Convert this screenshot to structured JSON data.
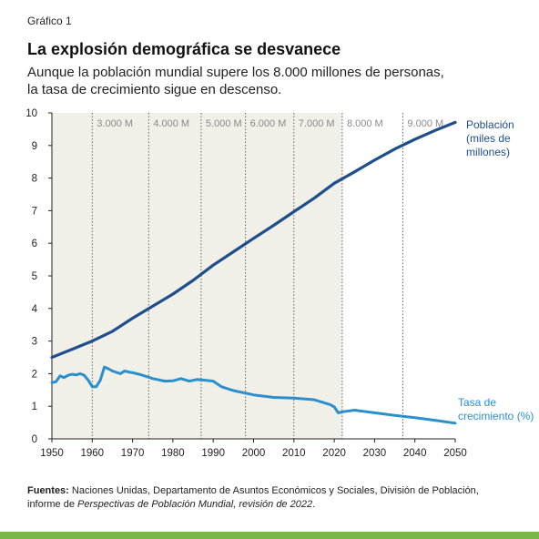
{
  "figure": {
    "eyebrow": "Gráfico 1",
    "title": "La explosión demográfica se desvanece",
    "subtitle_lines": [
      "Aunque la población mundial supere los 8.000 millones de personas,",
      "la tasa de crecimiento sigue en descenso."
    ],
    "source": {
      "label": "Fuentes:",
      "text_1": " Naciones Unidas, Departamento de Asuntos Económicos y Sociales, División de Población,",
      "text_2a": "informe de ",
      "text_2_italic": "Perspectivas de Población Mundial, revisión de 2022",
      "text_2b": "."
    },
    "colors": {
      "population_line": "#1f4e8c",
      "growth_line": "#2b8fcc",
      "shaded_area": "#f0efe8",
      "milestone_line": "#555555",
      "accent_bar": "#7ab648"
    }
  },
  "chart_data": {
    "type": "line",
    "x_ticks": [
      1950,
      1960,
      1970,
      1980,
      1990,
      2000,
      2010,
      2020,
      2030,
      2040,
      2050
    ],
    "y_ticks": [
      0,
      1,
      2,
      3,
      4,
      5,
      6,
      7,
      8,
      9,
      10
    ],
    "xlim": [
      1950,
      2050
    ],
    "ylim": [
      0,
      10
    ],
    "shaded_range": [
      1950,
      2022
    ],
    "grid": false,
    "milestones": [
      {
        "year": 1960,
        "label": "3.000 M"
      },
      {
        "year": 1974,
        "label": "4.000 M"
      },
      {
        "year": 1987,
        "label": "5.000 M"
      },
      {
        "year": 1998,
        "label": "6.000 M"
      },
      {
        "year": 2010,
        "label": "7.000 M"
      },
      {
        "year": 2022,
        "label": "8.000 M"
      },
      {
        "year": 2037,
        "label": "9.000 M"
      }
    ],
    "series": [
      {
        "name": "Población (miles de millones)",
        "label_lines": [
          "Población",
          "(miles de",
          "millones)"
        ],
        "x": [
          1950,
          1955,
          1960,
          1965,
          1970,
          1975,
          1980,
          1985,
          1990,
          1995,
          2000,
          2005,
          2010,
          2015,
          2020,
          2022,
          2025,
          2030,
          2035,
          2040,
          2045,
          2050
        ],
        "values": [
          2.5,
          2.75,
          3.0,
          3.3,
          3.7,
          4.07,
          4.44,
          4.86,
          5.33,
          5.74,
          6.15,
          6.55,
          6.97,
          7.38,
          7.84,
          7.98,
          8.19,
          8.55,
          8.89,
          9.19,
          9.46,
          9.71
        ]
      },
      {
        "name": "Tasa de crecimiento (%)",
        "label_lines": [
          "Tasa de",
          "crecimiento (%)"
        ],
        "x": [
          1950,
          1951,
          1952,
          1953,
          1954,
          1955,
          1956,
          1957,
          1958,
          1959,
          1960,
          1961,
          1962,
          1963,
          1964,
          1965,
          1966,
          1967,
          1968,
          1969,
          1970,
          1972,
          1975,
          1978,
          1980,
          1982,
          1984,
          1986,
          1988,
          1990,
          1992,
          1995,
          2000,
          2005,
          2010,
          2015,
          2019,
          2020,
          2021,
          2022,
          2025,
          2030,
          2035,
          2040,
          2045,
          2050
        ],
        "values": [
          1.73,
          1.75,
          1.93,
          1.88,
          1.95,
          1.98,
          1.96,
          2.0,
          1.95,
          1.8,
          1.6,
          1.6,
          1.8,
          2.2,
          2.15,
          2.08,
          2.04,
          2.0,
          2.08,
          2.05,
          2.03,
          1.97,
          1.85,
          1.77,
          1.78,
          1.85,
          1.77,
          1.82,
          1.8,
          1.77,
          1.6,
          1.48,
          1.35,
          1.27,
          1.25,
          1.2,
          1.05,
          0.98,
          0.8,
          0.83,
          0.88,
          0.8,
          0.72,
          0.65,
          0.57,
          0.48
        ]
      }
    ]
  }
}
